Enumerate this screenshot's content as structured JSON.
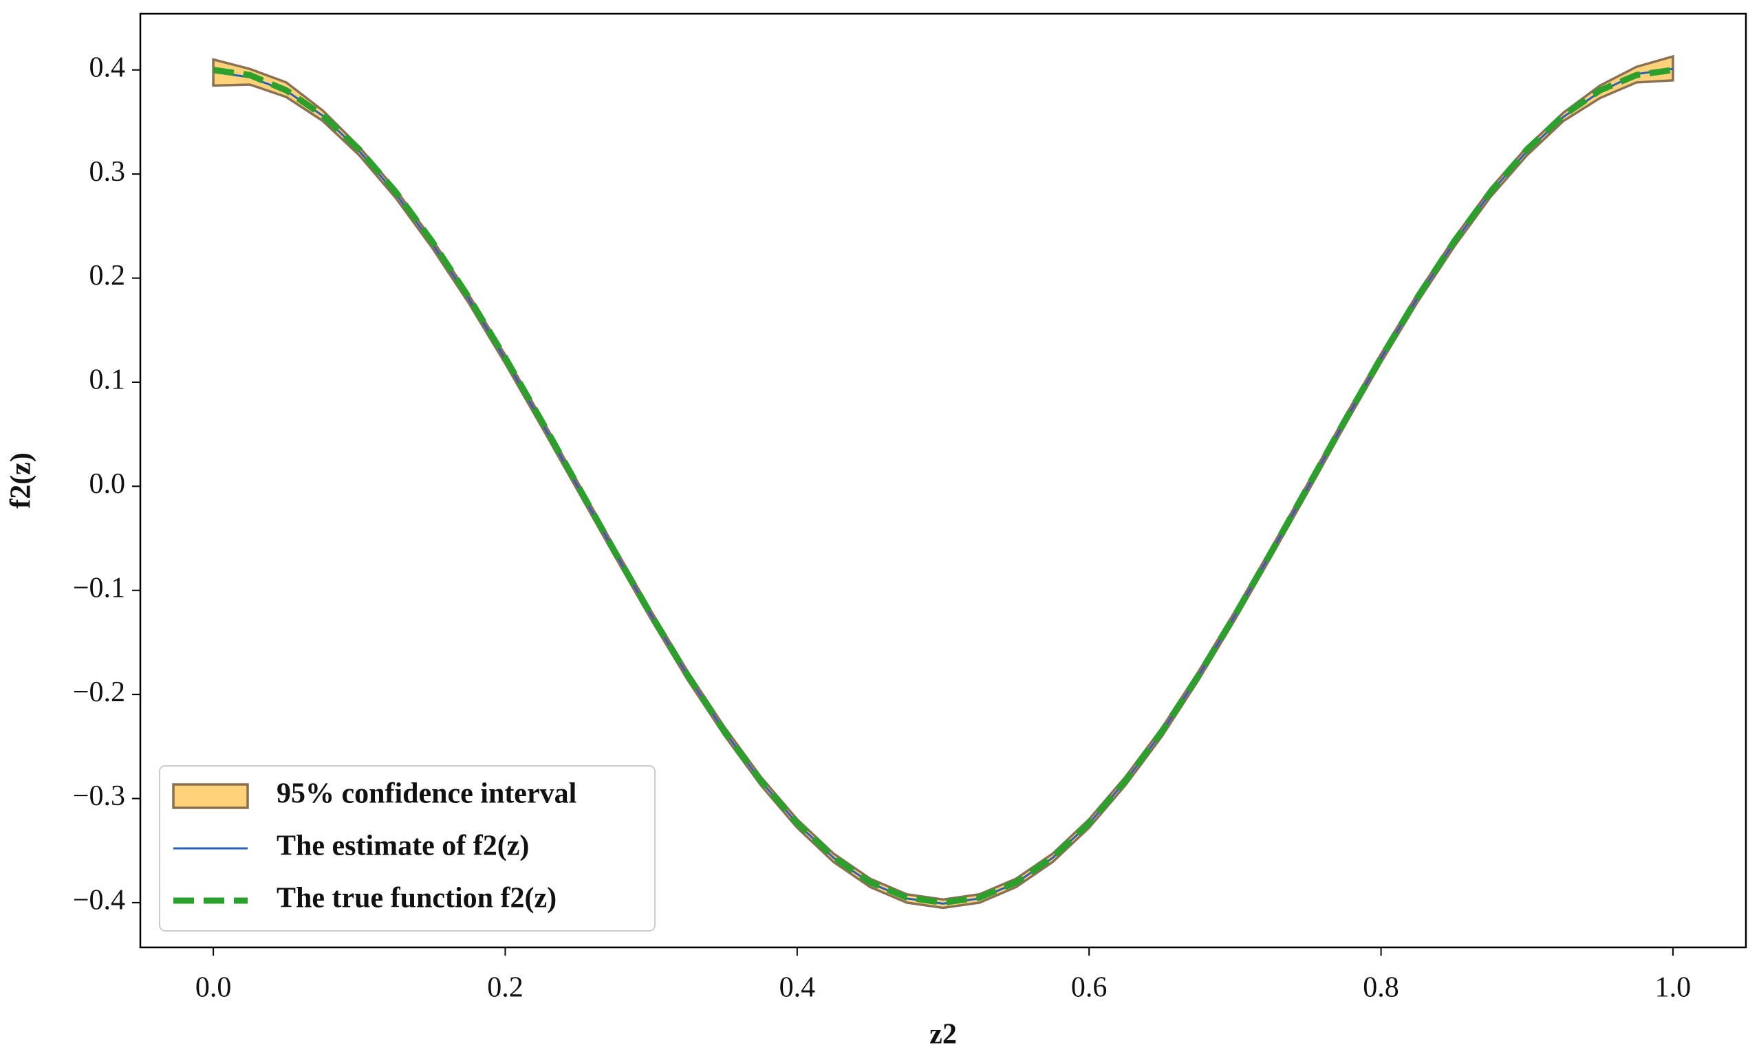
{
  "chart_data": {
    "type": "line",
    "xlabel": "z2",
    "ylabel": "f2(z)",
    "x": [
      0,
      0.025,
      0.05,
      0.075,
      0.1,
      0.125,
      0.15,
      0.175,
      0.2,
      0.225,
      0.25,
      0.275,
      0.3,
      0.325,
      0.35,
      0.375,
      0.4,
      0.425,
      0.45,
      0.475,
      0.5,
      0.525,
      0.55,
      0.575,
      0.6,
      0.625,
      0.65,
      0.675,
      0.7,
      0.725,
      0.75,
      0.775,
      0.8,
      0.825,
      0.85,
      0.875,
      0.9,
      0.925,
      0.95,
      0.975,
      1
    ],
    "band": {
      "name": "95% confidence interval",
      "color": "#ffd27a",
      "edgecolor": "#8a7052",
      "upper": [
        0.41,
        0.401,
        0.388,
        0.361,
        0.326,
        0.285,
        0.237,
        0.184,
        0.126,
        0.065,
        0.003,
        -0.059,
        -0.12,
        -0.178,
        -0.231,
        -0.279,
        -0.32,
        -0.353,
        -0.377,
        -0.392,
        -0.397,
        -0.392,
        -0.377,
        -0.353,
        -0.32,
        -0.279,
        -0.232,
        -0.178,
        -0.12,
        -0.059,
        0.003,
        0.066,
        0.127,
        0.185,
        0.238,
        0.286,
        0.326,
        0.359,
        0.385,
        0.403,
        0.413
      ],
      "lower": [
        0.385,
        0.386,
        0.374,
        0.351,
        0.318,
        0.277,
        0.229,
        0.176,
        0.118,
        0.057,
        -0.005,
        -0.067,
        -0.128,
        -0.186,
        -0.239,
        -0.287,
        -0.328,
        -0.361,
        -0.385,
        -0.4,
        -0.405,
        -0.4,
        -0.385,
        -0.361,
        -0.328,
        -0.287,
        -0.24,
        -0.186,
        -0.128,
        -0.067,
        -0.005,
        0.058,
        0.119,
        0.177,
        0.23,
        0.278,
        0.318,
        0.351,
        0.373,
        0.388,
        0.39
      ]
    },
    "series": [
      {
        "name": "The estimate of f2(z)",
        "color": "#2463b8",
        "dashed": false,
        "values": [
          0.398,
          0.393,
          0.38,
          0.356,
          0.322,
          0.281,
          0.233,
          0.18,
          0.122,
          0.061,
          -0.001,
          -0.063,
          -0.124,
          -0.182,
          -0.235,
          -0.283,
          -0.324,
          -0.357,
          -0.381,
          -0.396,
          -0.401,
          -0.396,
          -0.381,
          -0.357,
          -0.324,
          -0.283,
          -0.236,
          -0.182,
          -0.124,
          -0.063,
          -0.001,
          0.062,
          0.123,
          0.181,
          0.234,
          0.282,
          0.322,
          0.355,
          0.379,
          0.396,
          0.401
        ]
      },
      {
        "name": "The true function f2(z)",
        "color": "#2ca02c",
        "dashed": true,
        "values": [
          0.4,
          0.3951,
          0.3804,
          0.3564,
          0.3236,
          0.2828,
          0.2351,
          0.1816,
          0.1236,
          0.0626,
          0,
          -0.0626,
          -0.1236,
          -0.1816,
          -0.2351,
          -0.2828,
          -0.3236,
          -0.3564,
          -0.3804,
          -0.3951,
          -0.4,
          -0.3951,
          -0.3804,
          -0.3564,
          -0.3236,
          -0.2828,
          -0.2351,
          -0.1816,
          -0.1236,
          -0.0626,
          0,
          0.0626,
          0.1236,
          0.1816,
          0.2351,
          0.2828,
          0.3236,
          0.3564,
          0.3804,
          0.3951,
          0.4
        ]
      }
    ],
    "xlim": [
      -0.05,
      1.05
    ],
    "ylim": [
      -0.443,
      0.454
    ],
    "xticks": [
      {
        "value": 0,
        "label": "0.0"
      },
      0.2,
      0.4,
      0.6,
      0.8,
      {
        "value": 1,
        "label": "1.0"
      }
    ],
    "yticks": [
      {
        "value": -0.4,
        "label": "−0.4"
      },
      {
        "value": -0.3,
        "label": "−0.3"
      },
      {
        "value": -0.2,
        "label": "−0.2"
      },
      {
        "value": -0.1,
        "label": "−0.1"
      },
      {
        "value": 0,
        "label": "0.0"
      },
      0.1,
      0.2,
      0.3,
      0.4
    ],
    "legend": "lower left"
  }
}
